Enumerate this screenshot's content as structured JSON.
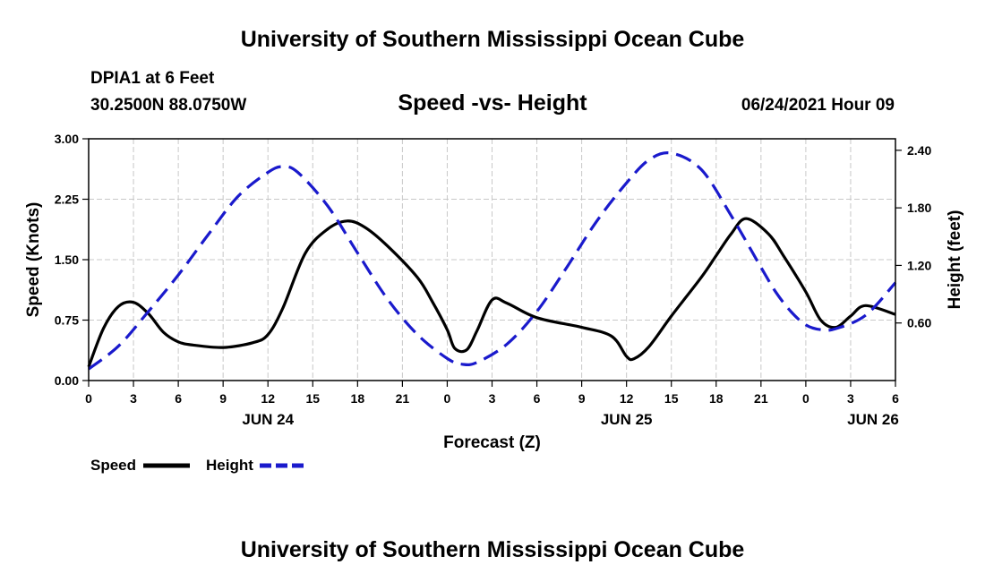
{
  "header": {
    "title_top": "University of Southern Mississippi Ocean Cube",
    "station": "DPIA1 at 6 Feet",
    "coords": "30.2500N  88.0750W",
    "subtitle": "Speed -vs- Height",
    "datetime": "06/24/2021 Hour 09",
    "title_bottom": "University of Southern Mississippi Ocean Cube"
  },
  "colors": {
    "speed": "#000000",
    "height": "#1a1acc",
    "grid": "#c8c8c8"
  },
  "chart_data": {
    "type": "line",
    "xlabel": "Forecast (Z)",
    "x_unit": "hours from 2021-06-24 00Z",
    "xlim": [
      0,
      54
    ],
    "x_ticks": [
      0,
      3,
      6,
      9,
      12,
      15,
      18,
      21,
      24,
      27,
      30,
      33,
      36,
      39,
      42,
      45,
      48,
      51,
      54
    ],
    "x_tick_labels": [
      "0",
      "3",
      "6",
      "9",
      "12",
      "15",
      "18",
      "21",
      "0",
      "3",
      "6",
      "9",
      "12",
      "15",
      "18",
      "21",
      "0",
      "3",
      "6"
    ],
    "date_labels": [
      {
        "x": 12,
        "label": "JUN 24"
      },
      {
        "x": 36,
        "label": "JUN 25"
      },
      {
        "x": 52.5,
        "label": "JUN 26"
      }
    ],
    "y_left": {
      "label": "Speed (Knots)",
      "lim": [
        0,
        3.0
      ],
      "ticks": [
        0,
        0.75,
        1.5,
        2.25,
        3.0
      ],
      "tick_labels": [
        "0.00",
        "0.75",
        "1.50",
        "2.25",
        "3.00"
      ]
    },
    "y_right": {
      "label": "Height (feet)",
      "lim": [
        0,
        2.52
      ],
      "ticks": [
        0.6,
        1.2,
        1.8,
        2.4
      ],
      "tick_labels": [
        "0.60",
        "1.20",
        "1.80",
        "2.40"
      ]
    },
    "grid": true,
    "legend_position": "bottom-left",
    "series": [
      {
        "name": "Speed",
        "axis": "left",
        "style": "solid",
        "x": [
          0,
          1,
          2,
          3,
          4,
          5,
          6,
          7,
          9,
          11,
          12,
          13,
          14.5,
          16,
          17.3,
          18.5,
          20,
          22,
          23,
          24,
          24.5,
          25.3,
          26,
          27,
          28,
          30,
          33,
          35,
          36,
          36.5,
          37.5,
          39,
          41,
          42,
          43,
          44,
          45.5,
          46.5,
          48,
          49,
          50,
          51,
          52,
          54
        ],
        "y": [
          0.17,
          0.65,
          0.92,
          0.97,
          0.83,
          0.6,
          0.48,
          0.44,
          0.41,
          0.47,
          0.57,
          0.9,
          1.58,
          1.88,
          1.98,
          1.9,
          1.67,
          1.28,
          0.98,
          0.63,
          0.4,
          0.38,
          0.62,
          1.0,
          0.96,
          0.78,
          0.66,
          0.55,
          0.3,
          0.27,
          0.42,
          0.8,
          1.28,
          1.55,
          1.82,
          2.01,
          1.82,
          1.55,
          1.1,
          0.75,
          0.66,
          0.8,
          0.93,
          0.82
        ]
      },
      {
        "name": "Height",
        "axis": "right",
        "style": "dashed",
        "x": [
          0,
          2,
          4,
          6,
          8,
          10,
          12,
          13,
          14,
          16,
          18,
          20,
          22,
          24,
          25,
          26,
          28,
          30,
          32,
          34,
          36,
          37.5,
          39,
          41,
          43,
          45,
          46,
          47,
          48,
          49,
          50,
          52,
          54
        ],
        "y": [
          0.12,
          0.36,
          0.72,
          1.1,
          1.52,
          1.92,
          2.17,
          2.23,
          2.17,
          1.82,
          1.33,
          0.85,
          0.48,
          0.23,
          0.17,
          0.19,
          0.38,
          0.72,
          1.18,
          1.66,
          2.06,
          2.3,
          2.37,
          2.2,
          1.72,
          1.18,
          0.92,
          0.72,
          0.58,
          0.53,
          0.54,
          0.68,
          1.02
        ]
      }
    ]
  }
}
